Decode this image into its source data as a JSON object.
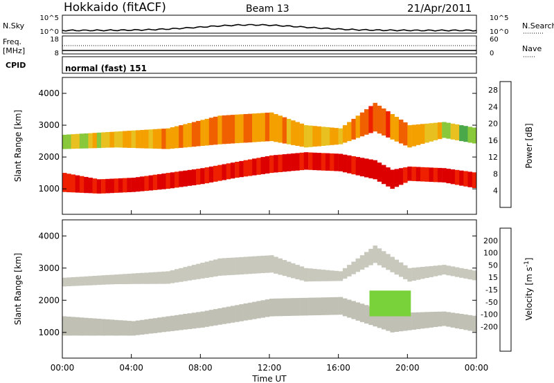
{
  "header": {
    "station": "Hokkaido (fitACF)",
    "beam": "Beam 13",
    "date": "21/Apr/2011"
  },
  "noise_panel": {
    "left_label": "N.Sky",
    "right_label": "N.Search",
    "left_ticks": [
      "10^5",
      "10^0"
    ],
    "right_ticks": [
      "10^5",
      "10^0"
    ]
  },
  "freq_panel": {
    "left_label_1": "Freq.",
    "left_label_2": "[MHz]",
    "left_ticks": [
      "18",
      "8"
    ],
    "right_label": "Nave",
    "right_ticks": [
      "60",
      "0"
    ]
  },
  "cpid_panel": {
    "label": "CPID",
    "value": "normal (fast) 151"
  },
  "colors": {
    "power_scale": [
      "#0000dd",
      "#1a4fa0",
      "#2a8a6a",
      "#4aa84a",
      "#88c83a",
      "#e8c020",
      "#f4a000",
      "#f06000",
      "#ee2000",
      "#dd0000"
    ],
    "velocity_scale": [
      "#0000cc",
      "#2244aa",
      "#2a7a5a",
      "#66cc33",
      "#bbbbaa",
      "#bbbbaa",
      "#f0a000",
      "#f06000",
      "#ee3300",
      "#ee0000"
    ]
  },
  "chart_data": [
    {
      "type": "heatmap",
      "panel": "power",
      "xlabel": "Time UT",
      "ylabel": "Slant Range [km]",
      "x_ticks": [
        "00:00",
        "04:00",
        "08:00",
        "12:00",
        "16:00",
        "20:00",
        "00:00"
      ],
      "xlim": [
        0,
        24
      ],
      "ylim": [
        200,
        4500
      ],
      "y_ticks": [
        1000,
        2000,
        3000,
        4000
      ],
      "colorbar_label": "Power [dB]",
      "colorbar_ticks": [
        4,
        8,
        12,
        16,
        20,
        24,
        28
      ],
      "colorbar_range": [
        0,
        30
      ],
      "main_band": [
        {
          "t": 0,
          "lo": 900,
          "hi": 1500,
          "val": 26
        },
        {
          "t": 2,
          "lo": 850,
          "hi": 1300,
          "val": 27
        },
        {
          "t": 4,
          "lo": 900,
          "hi": 1350,
          "val": 27
        },
        {
          "t": 6,
          "lo": 1000,
          "hi": 1500,
          "val": 27
        },
        {
          "t": 8,
          "lo": 1150,
          "hi": 1650,
          "val": 27
        },
        {
          "t": 10,
          "lo": 1350,
          "hi": 1850,
          "val": 26
        },
        {
          "t": 12,
          "lo": 1500,
          "hi": 2050,
          "val": 27
        },
        {
          "t": 14,
          "lo": 1600,
          "hi": 2150,
          "val": 27
        },
        {
          "t": 16,
          "lo": 1550,
          "hi": 2100,
          "val": 27
        },
        {
          "t": 18,
          "lo": 1300,
          "hi": 1900,
          "val": 28
        },
        {
          "t": 19,
          "lo": 1000,
          "hi": 1600,
          "val": 27
        },
        {
          "t": 20,
          "lo": 1250,
          "hi": 1700,
          "val": 26
        },
        {
          "t": 22,
          "lo": 1200,
          "hi": 1650,
          "val": 27
        },
        {
          "t": 24,
          "lo": 1000,
          "hi": 1500,
          "val": 26
        }
      ],
      "upper_band": [
        {
          "t": 0,
          "lo": 2250,
          "hi": 2700,
          "val": 14
        },
        {
          "t": 3,
          "lo": 2300,
          "hi": 2800,
          "val": 18
        },
        {
          "t": 6,
          "lo": 2250,
          "hi": 2900,
          "val": 20
        },
        {
          "t": 9,
          "lo": 2400,
          "hi": 3300,
          "val": 22
        },
        {
          "t": 12,
          "lo": 2500,
          "hi": 3400,
          "val": 20
        },
        {
          "t": 14,
          "lo": 2300,
          "hi": 3000,
          "val": 18
        },
        {
          "t": 16,
          "lo": 2400,
          "hi": 2900,
          "val": 18
        },
        {
          "t": 18,
          "lo": 2800,
          "hi": 3700,
          "val": 24
        },
        {
          "t": 20,
          "lo": 2300,
          "hi": 3000,
          "val": 20
        },
        {
          "t": 22,
          "lo": 2600,
          "hi": 3100,
          "val": 16
        },
        {
          "t": 24,
          "lo": 2400,
          "hi": 2900,
          "val": 10
        }
      ]
    },
    {
      "type": "heatmap",
      "panel": "velocity",
      "xlabel": "Time UT",
      "ylabel": "Slant Range [km]",
      "x_ticks": [
        "00:00",
        "04:00",
        "08:00",
        "12:00",
        "16:00",
        "20:00",
        "00:00"
      ],
      "xlim": [
        0,
        24
      ],
      "ylim": [
        200,
        4500
      ],
      "y_ticks": [
        1000,
        2000,
        3000,
        4000
      ],
      "colorbar_label": "Velocity [m s^-1]",
      "colorbar_ticks": [
        200,
        100,
        50,
        15,
        -15,
        -50,
        -100,
        -200
      ],
      "main_band": [
        {
          "t": 0,
          "lo": 900,
          "hi": 1500,
          "val": 0
        },
        {
          "t": 4,
          "lo": 900,
          "hi": 1350,
          "val": 0
        },
        {
          "t": 8,
          "lo": 1150,
          "hi": 1650,
          "val": 0
        },
        {
          "t": 12,
          "lo": 1500,
          "hi": 2050,
          "val": 0
        },
        {
          "t": 16,
          "lo": 1550,
          "hi": 2100,
          "val": 0
        },
        {
          "t": 19,
          "lo": 1000,
          "hi": 1600,
          "val": 0
        },
        {
          "t": 22,
          "lo": 1200,
          "hi": 1650,
          "val": 0
        },
        {
          "t": 24,
          "lo": 1000,
          "hi": 1500,
          "val": 0
        }
      ],
      "green_patch": {
        "t0": 17.8,
        "t1": 20.2,
        "lo": 1500,
        "hi": 2300,
        "val": 40
      }
    }
  ]
}
